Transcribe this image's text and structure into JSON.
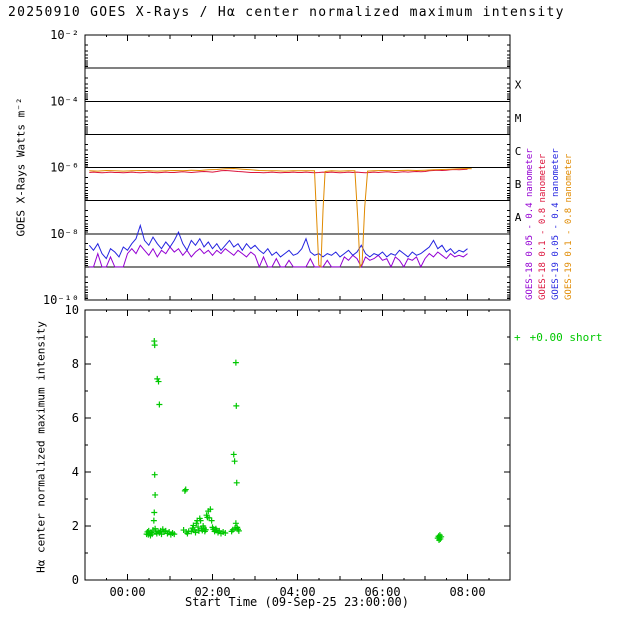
{
  "title": "20250910 GOES X-Rays / Hα center normalized maximum intensity",
  "chart_data": [
    {
      "type": "line",
      "y_scale": "log10",
      "ylabel": "GOES X-Rays Watts m⁻²",
      "ylim_log10": [
        -10,
        -2
      ],
      "ytick_values": [
        -2,
        -4,
        -6,
        -8,
        -10
      ],
      "ytick_labels": [
        "10⁻²",
        "10⁻⁴",
        "10⁻⁶",
        "10⁻⁸",
        "10⁻¹⁰"
      ],
      "x_hours_range": [
        -1,
        9
      ],
      "grid": "solid horizontal line at every decade",
      "flare_classes": [
        "X",
        "M",
        "C",
        "B",
        "A"
      ],
      "legend": [
        {
          "label": "GOES-18 0.05 - 0.4 nanometer",
          "color": "#9400d3"
        },
        {
          "label": "GOES-18 0.1 - 0.8 nanometer",
          "color": "#dc143c"
        },
        {
          "label": "GOES-19 0.05 - 0.4 nanometer",
          "color": "#2424e0"
        },
        {
          "label": "GOES-19 0.1 - 0.8 nanometer",
          "color": "#e08a00"
        }
      ],
      "series": [
        {
          "name": "GOES-18 0.05 - 0.4 nanometer",
          "color": "#9400d3",
          "t0": -0.9,
          "dt": 0.1,
          "log10": [
            -9.0,
            -9.0,
            -8.6,
            -9.0,
            -9.0,
            -8.7,
            -9.0,
            -9.0,
            -9.0,
            -8.6,
            -8.45,
            -8.6,
            -8.35,
            -8.5,
            -8.65,
            -8.45,
            -8.7,
            -8.5,
            -8.6,
            -8.4,
            -8.55,
            -8.45,
            -8.65,
            -8.5,
            -8.7,
            -8.55,
            -8.45,
            -8.6,
            -8.5,
            -8.65,
            -8.5,
            -8.6,
            -8.45,
            -8.55,
            -8.65,
            -8.5,
            -8.6,
            -8.7,
            -8.55,
            -8.65,
            -9.0,
            -8.7,
            -9.0,
            -9.0,
            -8.75,
            -9.0,
            -9.0,
            -8.8,
            -9.0,
            -9.0,
            -9.0,
            -9.0,
            -8.75,
            -9.0,
            -9.0,
            -9.0,
            -8.8,
            -9.0,
            -9.0,
            -9.0,
            -8.7,
            -8.8,
            -8.65,
            -8.75,
            -9.0,
            -8.7,
            -8.8,
            -8.75,
            -8.65,
            -8.8,
            -8.75,
            -9.0,
            -8.7,
            -8.8,
            -9.0,
            -8.75,
            -8.8,
            -8.7,
            -9.0,
            -8.75,
            -8.6,
            -8.7,
            -8.55,
            -8.65,
            -8.75,
            -8.6,
            -8.7,
            -8.65,
            -8.7,
            -8.6
          ]
        },
        {
          "name": "GOES-19 0.05 - 0.4 nanometer",
          "color": "#2424e0",
          "t0": -0.9,
          "dt": 0.1,
          "log10": [
            -8.35,
            -8.5,
            -8.3,
            -8.6,
            -8.75,
            -8.45,
            -8.55,
            -8.7,
            -8.4,
            -8.5,
            -8.3,
            -8.15,
            -7.75,
            -8.2,
            -8.35,
            -8.1,
            -8.3,
            -8.45,
            -8.25,
            -8.4,
            -8.2,
            -7.95,
            -8.3,
            -8.5,
            -8.2,
            -8.35,
            -8.15,
            -8.4,
            -8.25,
            -8.45,
            -8.3,
            -8.5,
            -8.35,
            -8.2,
            -8.4,
            -8.3,
            -8.5,
            -8.3,
            -8.45,
            -8.35,
            -8.5,
            -8.6,
            -8.45,
            -8.65,
            -8.55,
            -8.7,
            -8.6,
            -8.5,
            -8.65,
            -8.6,
            -8.45,
            -8.15,
            -8.55,
            -8.65,
            -8.6,
            -8.7,
            -8.6,
            -8.65,
            -8.55,
            -8.7,
            -8.6,
            -8.5,
            -8.65,
            -8.55,
            -8.35,
            -8.6,
            -8.7,
            -8.6,
            -8.65,
            -8.55,
            -8.7,
            -8.6,
            -8.65,
            -8.5,
            -8.6,
            -8.7,
            -8.55,
            -8.65,
            -8.6,
            -8.5,
            -8.4,
            -8.2,
            -8.45,
            -8.35,
            -8.55,
            -8.45,
            -8.6,
            -8.5,
            -8.55,
            -8.45
          ]
        },
        {
          "name": "GOES-18 0.1 - 0.8 nanometer",
          "color": "#dc143c",
          "t0": -0.9,
          "dt": 0.1,
          "log10": [
            -6.15,
            -6.14,
            -6.15,
            -6.16,
            -6.15,
            -6.14,
            -6.15,
            -6.15,
            -6.16,
            -6.15,
            -6.14,
            -6.15,
            -6.16,
            -6.15,
            -6.14,
            -6.15,
            -6.16,
            -6.15,
            -6.14,
            -6.15,
            -6.15,
            -6.14,
            -6.13,
            -6.14,
            -6.15,
            -6.14,
            -6.13,
            -6.12,
            -6.13,
            -6.14,
            -6.12,
            -6.1,
            -6.09,
            -6.1,
            -6.11,
            -6.12,
            -6.13,
            -6.14,
            -6.15,
            -6.15,
            -6.15,
            -6.16,
            -6.15,
            -6.14,
            -6.15,
            -6.16,
            -6.15,
            -6.15,
            -6.14,
            -6.15,
            -6.15,
            -6.14,
            -6.15,
            -6.16,
            -6.15,
            -6.14,
            -6.15,
            -6.14,
            -6.15,
            -6.16,
            -6.15,
            -6.14,
            -6.15,
            -6.14,
            -6.15,
            -6.16,
            -6.15,
            -6.14,
            -6.15,
            -6.14,
            -6.13,
            -6.14,
            -6.15,
            -6.14,
            -6.13,
            -6.14,
            -6.13,
            -6.12,
            -6.13,
            -6.12,
            -6.1,
            -6.09,
            -6.08,
            -6.09,
            -6.08,
            -6.07,
            -6.06,
            -6.07,
            -6.06,
            -6.05
          ]
        },
        {
          "name": "GOES-19 0.1 - 0.8 nanometer",
          "color": "#e08a00",
          "points": [
            [
              -0.9,
              -6.1
            ],
            [
              -0.7,
              -6.11
            ],
            [
              -0.5,
              -6.09
            ],
            [
              -0.3,
              -6.1
            ],
            [
              -0.1,
              -6.11
            ],
            [
              0.1,
              -6.1
            ],
            [
              0.3,
              -6.09
            ],
            [
              0.5,
              -6.1
            ],
            [
              0.7,
              -6.11
            ],
            [
              0.9,
              -6.1
            ],
            [
              1.1,
              -6.09
            ],
            [
              1.3,
              -6.1
            ],
            [
              1.5,
              -6.08
            ],
            [
              1.7,
              -6.09
            ],
            [
              1.9,
              -6.07
            ],
            [
              2.1,
              -6.06
            ],
            [
              2.3,
              -6.04
            ],
            [
              2.5,
              -6.03
            ],
            [
              2.7,
              -6.05
            ],
            [
              2.9,
              -6.07
            ],
            [
              3.1,
              -6.09
            ],
            [
              3.3,
              -6.1
            ],
            [
              3.5,
              -6.1
            ],
            [
              3.7,
              -6.11
            ],
            [
              3.9,
              -6.1
            ],
            [
              4.1,
              -6.1
            ],
            [
              4.3,
              -6.1
            ],
            [
              4.4,
              -6.1
            ],
            [
              4.45,
              -7.5
            ],
            [
              4.5,
              -8.95
            ],
            [
              4.55,
              -9.0
            ],
            [
              4.6,
              -7.3
            ],
            [
              4.65,
              -6.12
            ],
            [
              4.8,
              -6.1
            ],
            [
              5.0,
              -6.11
            ],
            [
              5.2,
              -6.1
            ],
            [
              5.35,
              -6.1
            ],
            [
              5.42,
              -7.6
            ],
            [
              5.47,
              -9.0
            ],
            [
              5.52,
              -8.9
            ],
            [
              5.58,
              -7.2
            ],
            [
              5.65,
              -6.11
            ],
            [
              5.8,
              -6.1
            ],
            [
              6.0,
              -6.09
            ],
            [
              6.2,
              -6.1
            ],
            [
              6.4,
              -6.09
            ],
            [
              6.6,
              -6.08
            ],
            [
              6.8,
              -6.09
            ],
            [
              7.0,
              -6.08
            ],
            [
              7.2,
              -6.07
            ],
            [
              7.4,
              -6.06
            ],
            [
              7.6,
              -6.05
            ],
            [
              7.8,
              -6.04
            ],
            [
              8.0,
              -6.03
            ],
            [
              8.1,
              -6.04
            ]
          ]
        }
      ]
    },
    {
      "type": "scatter",
      "ylabel": "Hα center normalized maximum intensity",
      "xlabel": "Start Time (09-Sep-25 23:00:00)",
      "ylim": [
        0,
        10
      ],
      "ytick_values": [
        0,
        2,
        4,
        6,
        8,
        10
      ],
      "xtick_values": [
        0,
        2,
        4,
        6,
        8
      ],
      "xtick_labels": [
        "00:00",
        "02:00",
        "04:00",
        "06:00",
        "08:00"
      ],
      "marker": "+",
      "marker_color": "#00c800",
      "legend_label": "+0.00 short",
      "points": [
        [
          0.45,
          1.7
        ],
        [
          0.47,
          1.78
        ],
        [
          0.49,
          1.68
        ],
        [
          0.5,
          1.82
        ],
        [
          0.52,
          1.72
        ],
        [
          0.54,
          1.65
        ],
        [
          0.56,
          1.76
        ],
        [
          0.58,
          1.7
        ],
        [
          0.6,
          1.85
        ],
        [
          0.62,
          2.2
        ],
        [
          0.63,
          2.5
        ],
        [
          0.63,
          8.85
        ],
        [
          0.64,
          8.7
        ],
        [
          0.64,
          3.9
        ],
        [
          0.65,
          3.15
        ],
        [
          0.65,
          1.9
        ],
        [
          0.67,
          1.78
        ],
        [
          0.69,
          1.72
        ],
        [
          0.7,
          7.45
        ],
        [
          0.72,
          1.8
        ],
        [
          0.73,
          7.35
        ],
        [
          0.75,
          6.5
        ],
        [
          0.75,
          1.75
        ],
        [
          0.78,
          1.82
        ],
        [
          0.8,
          1.7
        ],
        [
          0.83,
          1.88
        ],
        [
          0.86,
          1.78
        ],
        [
          0.9,
          1.82
        ],
        [
          0.94,
          1.72
        ],
        [
          0.98,
          1.78
        ],
        [
          1.02,
          1.68
        ],
        [
          1.06,
          1.74
        ],
        [
          1.1,
          1.7
        ],
        [
          1.32,
          1.85
        ],
        [
          1.35,
          3.3
        ],
        [
          1.37,
          3.35
        ],
        [
          1.38,
          1.78
        ],
        [
          1.41,
          1.72
        ],
        [
          1.44,
          1.8
        ],
        [
          1.5,
          1.8
        ],
        [
          1.53,
          1.92
        ],
        [
          1.55,
          2.02
        ],
        [
          1.57,
          1.86
        ],
        [
          1.6,
          1.76
        ],
        [
          1.62,
          2.1
        ],
        [
          1.64,
          2.2
        ],
        [
          1.66,
          1.96
        ],
        [
          1.68,
          1.82
        ],
        [
          1.7,
          2.28
        ],
        [
          1.72,
          2.2
        ],
        [
          1.74,
          1.9
        ],
        [
          1.76,
          1.84
        ],
        [
          1.78,
          2.0
        ],
        [
          1.8,
          1.92
        ],
        [
          1.82,
          1.8
        ],
        [
          1.84,
          1.86
        ],
        [
          1.86,
          2.4
        ],
        [
          1.88,
          2.32
        ],
        [
          1.9,
          2.55
        ],
        [
          1.92,
          2.3
        ],
        [
          1.95,
          2.62
        ],
        [
          1.98,
          2.2
        ],
        [
          2.0,
          1.95
        ],
        [
          2.02,
          1.88
        ],
        [
          2.05,
          1.8
        ],
        [
          2.08,
          1.9
        ],
        [
          2.1,
          1.84
        ],
        [
          2.13,
          1.76
        ],
        [
          2.16,
          1.82
        ],
        [
          2.2,
          1.72
        ],
        [
          2.25,
          1.78
        ],
        [
          2.3,
          1.74
        ],
        [
          2.45,
          1.8
        ],
        [
          2.48,
          1.86
        ],
        [
          2.5,
          4.65
        ],
        [
          2.52,
          4.4
        ],
        [
          2.53,
          1.92
        ],
        [
          2.55,
          8.05
        ],
        [
          2.55,
          2.1
        ],
        [
          2.56,
          6.45
        ],
        [
          2.57,
          3.6
        ],
        [
          2.58,
          1.95
        ],
        [
          2.6,
          1.88
        ],
        [
          2.62,
          1.82
        ],
        [
          7.3,
          1.55
        ],
        [
          7.32,
          1.62
        ],
        [
          7.33,
          1.48
        ],
        [
          7.34,
          1.58
        ],
        [
          7.36,
          1.52
        ],
        [
          7.38,
          1.6
        ],
        [
          7.35,
          1.66
        ]
      ]
    }
  ]
}
